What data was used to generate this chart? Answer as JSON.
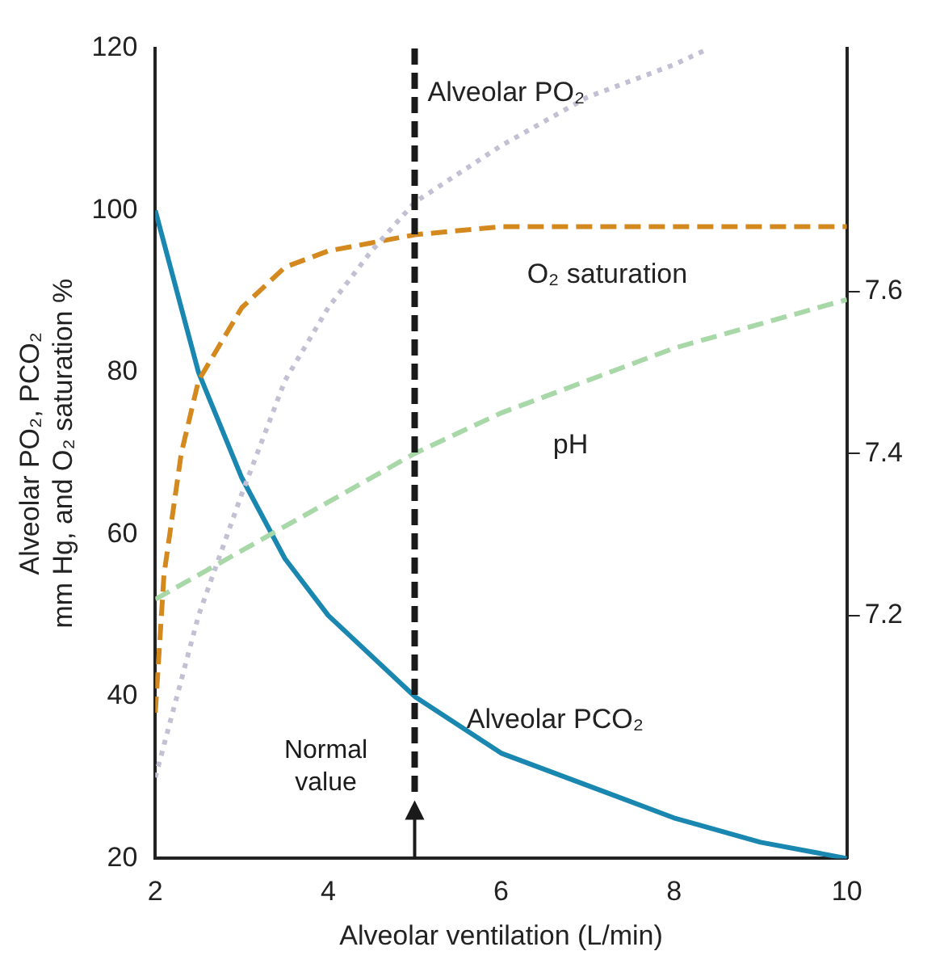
{
  "chart_data": {
    "type": "line",
    "xlabel": "Alveolar ventilation (L/min)",
    "ylabel": "Alveolar PO₂, PCO₂ mm Hg, and O₂ saturation %",
    "xlim": [
      2,
      10
    ],
    "xticks": [
      2,
      4,
      6,
      8,
      10
    ],
    "ylim": [
      20,
      120
    ],
    "yticks": [
      20,
      40,
      60,
      80,
      100,
      120
    ],
    "y2lim": [
      6.9,
      7.9
    ],
    "y2ticks": [
      7.2,
      7.4,
      7.6
    ],
    "grid": false,
    "legend": false,
    "marker": "none",
    "series": [
      {
        "name": "Alveolar PO₂",
        "color": "#c4c0d4",
        "line_style": "dotted",
        "x": [
          2,
          2.5,
          3,
          3.5,
          4,
          4.5,
          5,
          6,
          7,
          8,
          8.4
        ],
        "values": [
          30,
          50,
          65,
          79,
          88,
          95,
          101,
          108,
          114,
          118,
          120
        ]
      },
      {
        "name": "O₂ saturation",
        "color": "#d4891e",
        "line_style": "dashed",
        "x": [
          2,
          2.1,
          2.3,
          2.5,
          3,
          3.5,
          4,
          5,
          6,
          8,
          10
        ],
        "values": [
          38,
          55,
          70,
          79,
          88,
          93,
          95,
          97,
          98,
          98,
          98
        ]
      },
      {
        "name": "pH",
        "color": "#a8d8a8",
        "line_style": "dashed",
        "axis": "y2",
        "x": [
          2,
          2.5,
          3,
          4,
          5,
          6,
          7,
          8,
          9,
          10
        ],
        "values": [
          7.22,
          7.25,
          7.28,
          7.34,
          7.4,
          7.45,
          7.49,
          7.53,
          7.56,
          7.59
        ]
      },
      {
        "name": "Alveolar PCO₂",
        "color": "#1a87b0",
        "line_style": "solid",
        "x": [
          2,
          2.5,
          3,
          3.5,
          4,
          5,
          6,
          7,
          8,
          9,
          10
        ],
        "values": [
          100,
          80,
          67,
          57,
          50,
          40,
          33,
          29,
          25,
          22,
          20
        ]
      }
    ],
    "ref_lines": [
      {
        "axis": "x",
        "value": 5,
        "label": "Normal value",
        "color": "#1a1a1a",
        "line_style": "dashed"
      }
    ]
  }
}
